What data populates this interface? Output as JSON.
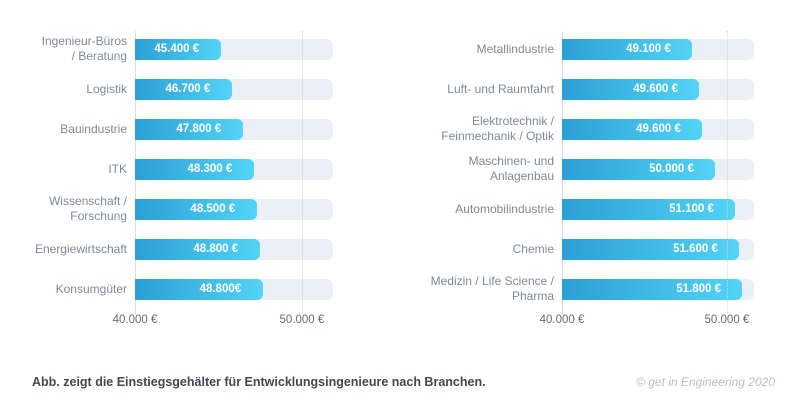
{
  "colors": {
    "bar_gradient_start": "#2b9fd4",
    "bar_gradient_end": "#53d3f8",
    "track": "#eaf0f5",
    "axis_line": "#d6dee5",
    "gridline": "#c7d9e2",
    "category_text": "#7b8a99",
    "axis_text": "#5f6e7c",
    "value_text": "#ffffff",
    "caption_text": "#3e4952",
    "credit_text": "#b4bfca"
  },
  "charts": [
    {
      "items": [
        {
          "label": "Ingenieur-Büros\n/ Beratung",
          "value_label": "45.400 €",
          "width_pct": 43.4
        },
        {
          "label": "Logistik",
          "value_label": "46.700 €",
          "width_pct": 49.0
        },
        {
          "label": "Bauindustrie",
          "value_label": "47.800 €",
          "width_pct": 54.5
        },
        {
          "label": "ITK",
          "value_label": "48.300 €",
          "width_pct": 60.1
        },
        {
          "label": "Wissenschaft /\nForschung",
          "value_label": "48.500 €",
          "width_pct": 61.6
        },
        {
          "label": "Energiewirtschaft",
          "value_label": "48.800 €",
          "width_pct": 63.1
        },
        {
          "label": "Konsumgüter",
          "value_label": "48.800€",
          "width_pct": 64.6
        }
      ],
      "axis": {
        "min_label": "40.000 €",
        "max_label": "50.000 €"
      }
    },
    {
      "items": [
        {
          "label": "Metallindustrie",
          "value_label": "49.100 €",
          "width_pct": 67.7
        },
        {
          "label": "Luft- und Raumfahrt",
          "value_label": "49.600 €",
          "width_pct": 71.4
        },
        {
          "label": "Elektrotechnik /\nFeinmechanik / Optik",
          "value_label": "49.600 €",
          "width_pct": 72.9
        },
        {
          "label": "Maschinen- und\nAnlagenbau",
          "value_label": "50.000 €",
          "width_pct": 79.7
        },
        {
          "label": "Automobilindustrie",
          "value_label": "51.100 €",
          "width_pct": 90.1
        },
        {
          "label": "Chemie",
          "value_label": "51.600 €",
          "width_pct": 92.2
        },
        {
          "label": "Medizin / Life Science /\nPharma",
          "value_label": "51.800 €",
          "width_pct": 93.8
        }
      ],
      "axis": {
        "min_label": "40.000 €",
        "max_label": "50.000 €"
      }
    }
  ],
  "caption": "Abb. zeigt die Einstiegsgehälter für Entwicklungsingenieure nach Branchen.",
  "credit": "© get in Engineering 2020",
  "chart_data": [
    {
      "type": "bar",
      "orientation": "horizontal",
      "categories": [
        "Ingenieur-Büros / Beratung",
        "Logistik",
        "Bauindustrie",
        "ITK",
        "Wissenschaft / Forschung",
        "Energiewirtschaft",
        "Konsumgüter"
      ],
      "values": [
        45400,
        46700,
        47800,
        48300,
        48500,
        48800,
        48800
      ],
      "value_labels": [
        "45.400 €",
        "46.700 €",
        "47.800 €",
        "48.300 €",
        "48.500 €",
        "48.800 €",
        "48.800€"
      ],
      "title": "",
      "xlabel": "",
      "ylabel": "",
      "xticks": [
        "40.000 €",
        "50.000 €"
      ],
      "xlim": [
        40000,
        52000
      ],
      "unit": "EUR",
      "grid": "dotted vertical line at 50.000 €",
      "legend": "none"
    },
    {
      "type": "bar",
      "orientation": "horizontal",
      "categories": [
        "Metallindustrie",
        "Luft- und Raumfahrt",
        "Elektrotechnik / Feinmechanik / Optik",
        "Maschinen- und Anlagenbau",
        "Automobilindustrie",
        "Chemie",
        "Medizin / Life Science / Pharma"
      ],
      "values": [
        49100,
        49600,
        49600,
        50000,
        51100,
        51600,
        51800
      ],
      "value_labels": [
        "49.100 €",
        "49.600 €",
        "49.600 €",
        "50.000 €",
        "51.100 €",
        "51.600 €",
        "51.800 €"
      ],
      "title": "",
      "xlabel": "",
      "ylabel": "",
      "xticks": [
        "40.000 €",
        "50.000 €"
      ],
      "xlim": [
        40000,
        52000
      ],
      "unit": "EUR",
      "grid": "dotted vertical line at 50.000 €",
      "legend": "none"
    }
  ]
}
